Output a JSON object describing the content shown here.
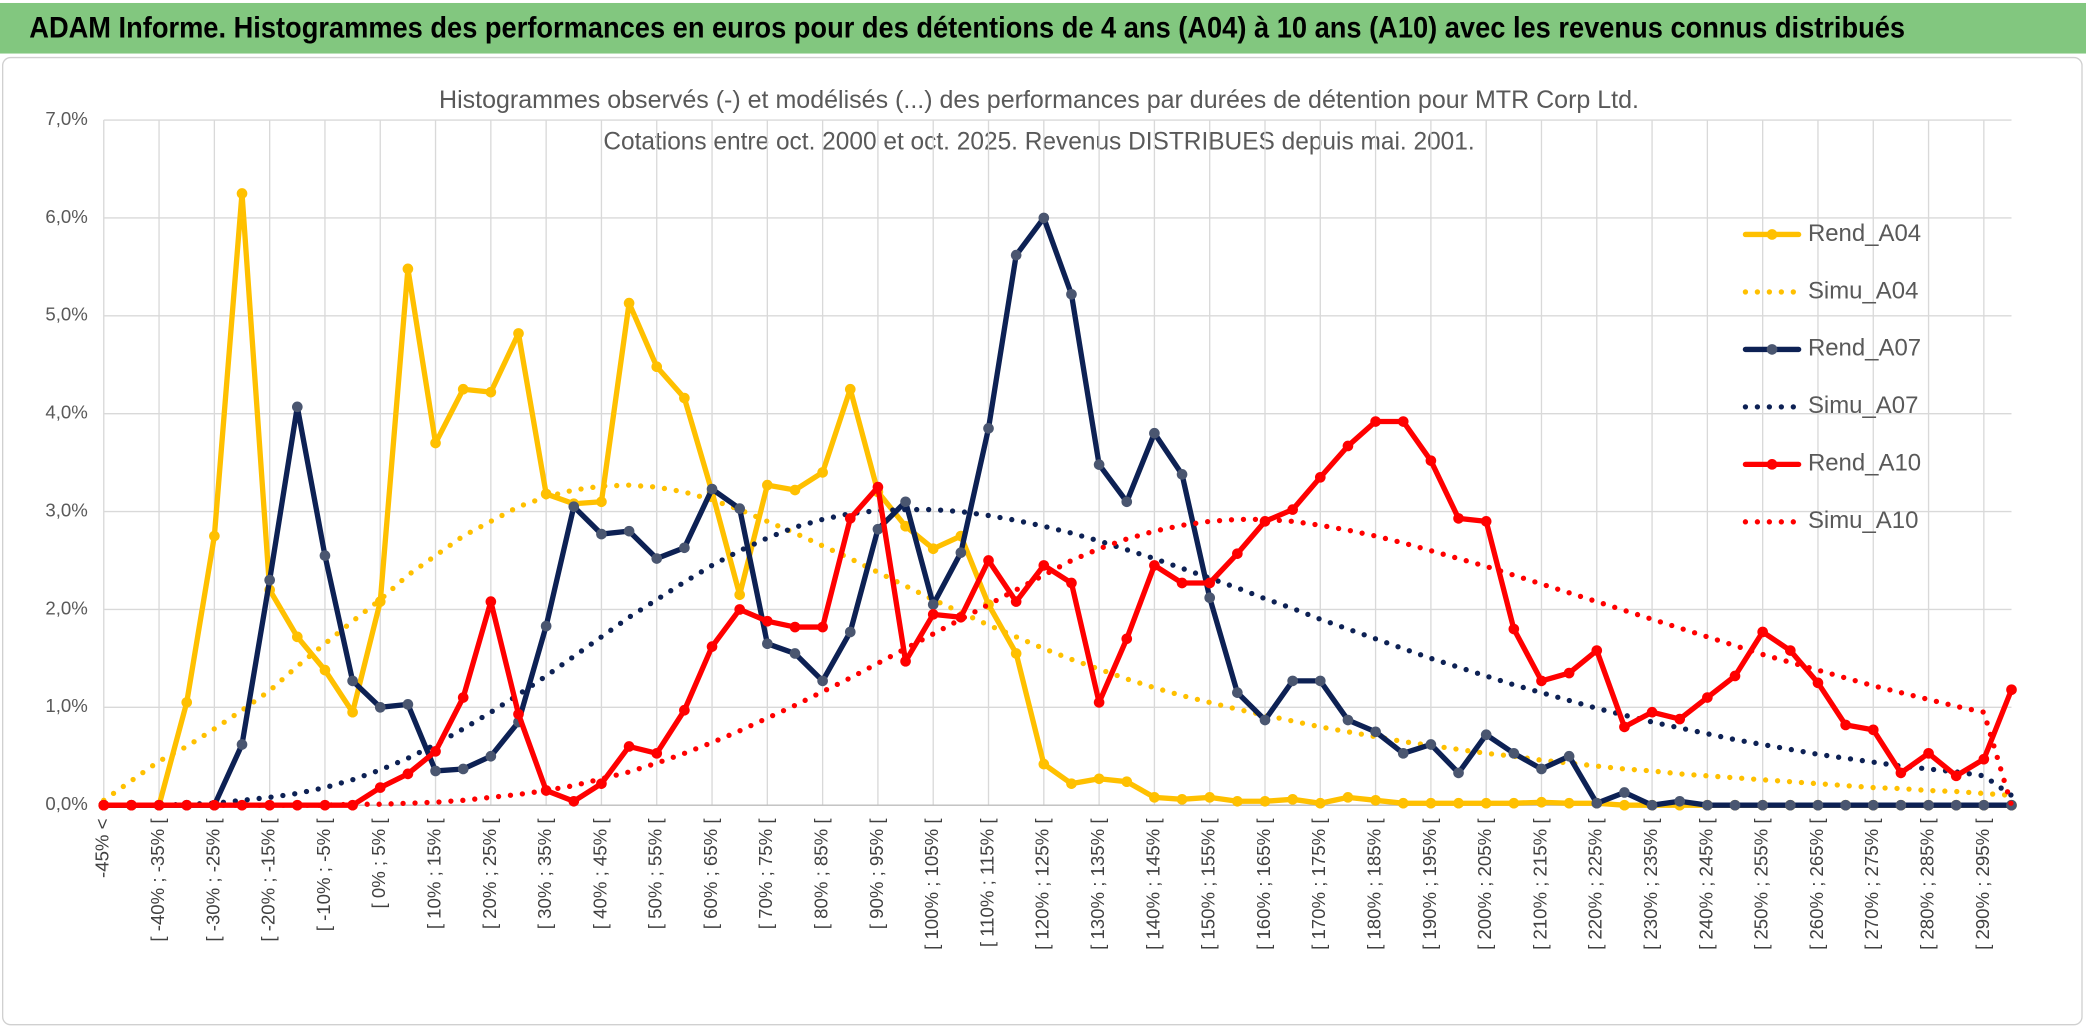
{
  "header": {
    "title": "ADAM Informe. Histogrammes des performances en euros pour des détentions de 4 ans (A04) à 10 ans (A10) avec les revenus connus distribués"
  },
  "chart_data": {
    "type": "line",
    "title": "Histogrammes observés (-) et modélisés (...) des performances par durées de détention pour MTR Corp Ltd.",
    "subtitle": "Cotations entre oct. 2000 et oct. 2025. Revenus DISTRIBUES depuis mai. 2001.",
    "categories": [
      "-45% <",
      null,
      "[ -40% ; -35% [",
      null,
      "[ -30% ; -25% [",
      null,
      "[ -20% ; -15% [",
      null,
      "[ -10% ; -5% [",
      null,
      "[ 0% ; 5% [",
      null,
      "[ 10% ; 15% [",
      null,
      "[ 20% ; 25% [",
      null,
      "[ 30% ; 35% [",
      null,
      "[ 40% ; 45% [",
      null,
      "[ 50% ; 55% [",
      null,
      "[ 60% ; 65% [",
      null,
      "[ 70% ; 75% [",
      null,
      "[ 80% ; 85% [",
      null,
      "[ 90% ; 95% [",
      null,
      "[ 100% ; 105% [",
      null,
      "[ 110% ; 115% [",
      null,
      "[ 120% ; 125% [",
      null,
      "[ 130% ; 135% [",
      null,
      "[ 140% ; 145% [",
      null,
      "[ 150% ; 155% [",
      null,
      "[ 160% ; 165% [",
      null,
      "[ 170% ; 175% [",
      null,
      "[ 180% ; 185% [",
      null,
      "[ 190% ; 195% [",
      null,
      "[ 200% ; 205% [",
      null,
      "[ 210% ; 215% [",
      null,
      "[ 220% ; 225% [",
      null,
      "[ 230% ; 235% [",
      null,
      "[ 240% ; 245% [",
      null,
      "[ 250% ; 255% [",
      null,
      "[ 260% ; 265% [",
      null,
      "[ 270% ; 275% [",
      null,
      "[ 280% ; 285% [",
      null,
      "[ 290% ; 295% [",
      null
    ],
    "series": [
      {
        "name": "Rend_A04",
        "color": "#ffc000",
        "dotted": false,
        "values": [
          0,
          0,
          0,
          1.05,
          2.75,
          6.25,
          2.2,
          1.72,
          1.38,
          0.95,
          2.08,
          5.48,
          3.7,
          4.25,
          4.22,
          4.82,
          3.18,
          3.08,
          3.1,
          5.13,
          4.48,
          4.16,
          3.2,
          2.15,
          3.27,
          3.22,
          3.4,
          4.25,
          3.2,
          2.85,
          2.62,
          2.75,
          2.05,
          1.55,
          0.42,
          0.22,
          0.27,
          0.24,
          0.08,
          0.06,
          0.08,
          0.04,
          0.04,
          0.06,
          0.02,
          0.08,
          0.05,
          0.02,
          0.02,
          0.02,
          0.02,
          0.02,
          0.03,
          0.02,
          0.02,
          0,
          0,
          0,
          0,
          0,
          0,
          0,
          0,
          0,
          0,
          0,
          0,
          0,
          0,
          0
        ]
      },
      {
        "name": "Simu_A04",
        "color": "#ffc000",
        "dotted": true,
        "values": [
          0.05,
          0.25,
          0.45,
          0.6,
          0.78,
          0.97,
          1.17,
          1.42,
          1.65,
          1.88,
          2.1,
          2.35,
          2.55,
          2.75,
          2.9,
          3.05,
          3.15,
          3.22,
          3.26,
          3.27,
          3.25,
          3.2,
          3.12,
          3.02,
          2.9,
          2.78,
          2.65,
          2.52,
          2.38,
          2.24,
          2.1,
          1.97,
          1.84,
          1.72,
          1.6,
          1.49,
          1.39,
          1.29,
          1.2,
          1.12,
          1.05,
          0.98,
          0.92,
          0.86,
          0.8,
          0.75,
          0.7,
          0.65,
          0.61,
          0.57,
          0.53,
          0.5,
          0.46,
          0.43,
          0.4,
          0.37,
          0.35,
          0.32,
          0.3,
          0.28,
          0.26,
          0.24,
          0.22,
          0.2,
          0.18,
          0.17,
          0.15,
          0.14,
          0.12,
          0.1
        ]
      },
      {
        "name": "Rend_A07",
        "color": "#0d2154",
        "dotted": false,
        "values": [
          0,
          0,
          0,
          0,
          0,
          0.62,
          2.3,
          4.07,
          2.55,
          1.27,
          1.0,
          1.03,
          0.35,
          0.37,
          0.5,
          0.85,
          1.83,
          3.05,
          2.77,
          2.8,
          2.52,
          2.63,
          3.23,
          3.03,
          1.65,
          1.55,
          1.27,
          1.77,
          2.82,
          3.1,
          2.05,
          2.58,
          3.85,
          5.62,
          6.0,
          5.22,
          3.48,
          3.1,
          3.8,
          3.38,
          2.12,
          1.15,
          0.87,
          1.27,
          1.27,
          0.87,
          0.75,
          0.53,
          0.62,
          0.33,
          0.72,
          0.53,
          0.37,
          0.5,
          0.02,
          0.13,
          0,
          0.04,
          0,
          0,
          0,
          0,
          0,
          0,
          0,
          0,
          0,
          0,
          0,
          0
        ]
      },
      {
        "name": "Simu_A07",
        "color": "#0d2154",
        "dotted": true,
        "values": [
          0,
          0,
          0,
          0.01,
          0.02,
          0.05,
          0.08,
          0.12,
          0.18,
          0.26,
          0.36,
          0.48,
          0.62,
          0.78,
          0.95,
          1.13,
          1.32,
          1.52,
          1.72,
          1.92,
          2.1,
          2.28,
          2.45,
          2.6,
          2.73,
          2.84,
          2.92,
          2.98,
          3.01,
          3.02,
          3.02,
          3.0,
          2.96,
          2.91,
          2.85,
          2.78,
          2.7,
          2.61,
          2.52,
          2.42,
          2.32,
          2.22,
          2.11,
          2.01,
          1.9,
          1.8,
          1.7,
          1.6,
          1.5,
          1.41,
          1.32,
          1.23,
          1.15,
          1.07,
          0.99,
          0.92,
          0.85,
          0.79,
          0.73,
          0.67,
          0.62,
          0.57,
          0.52,
          0.48,
          0.44,
          0.4,
          0.37,
          0.34,
          0.3,
          0.1
        ]
      },
      {
        "name": "Rend_A10",
        "color": "#ff0000",
        "dotted": false,
        "values": [
          0,
          0,
          0,
          0,
          0,
          0,
          0,
          0,
          0,
          0,
          0.18,
          0.32,
          0.55,
          1.1,
          2.08,
          0.93,
          0.15,
          0.04,
          0.22,
          0.6,
          0.53,
          0.97,
          1.62,
          2.0,
          1.88,
          1.82,
          1.82,
          2.93,
          3.25,
          1.47,
          1.95,
          1.92,
          2.5,
          2.08,
          2.45,
          2.27,
          1.05,
          1.7,
          2.45,
          2.27,
          2.27,
          2.57,
          2.9,
          3.02,
          3.35,
          3.67,
          3.92,
          3.92,
          3.52,
          2.93,
          2.9,
          1.8,
          1.27,
          1.35,
          1.58,
          0.8,
          0.95,
          0.88,
          1.1,
          1.32,
          1.77,
          1.58,
          1.25,
          0.82,
          0.77,
          0.33,
          0.53,
          0.3,
          0.47,
          1.18
        ]
      },
      {
        "name": "Simu_A10",
        "color": "#ff0000",
        "dotted": true,
        "values": [
          0,
          0,
          0,
          0,
          0,
          0,
          0,
          0,
          0,
          0.01,
          0.01,
          0.02,
          0.03,
          0.05,
          0.08,
          0.11,
          0.15,
          0.2,
          0.27,
          0.34,
          0.43,
          0.53,
          0.64,
          0.76,
          0.89,
          1.02,
          1.16,
          1.3,
          1.45,
          1.6,
          1.75,
          1.9,
          2.05,
          2.2,
          2.35,
          2.5,
          2.62,
          2.72,
          2.8,
          2.86,
          2.9,
          2.92,
          2.92,
          2.9,
          2.86,
          2.81,
          2.75,
          2.68,
          2.6,
          2.52,
          2.44,
          2.35,
          2.26,
          2.17,
          2.08,
          1.99,
          1.9,
          1.81,
          1.72,
          1.63,
          1.54,
          1.46,
          1.38,
          1.3,
          1.22,
          1.15,
          1.08,
          1.01,
          0.95,
          0
        ]
      }
    ],
    "ylim": [
      0,
      7
    ],
    "yticks": [
      {
        "value": 0,
        "label": "0,0%"
      },
      {
        "value": 1,
        "label": "1,0%"
      },
      {
        "value": 2,
        "label": "2,0%"
      },
      {
        "value": 3,
        "label": "3,0%"
      },
      {
        "value": 4,
        "label": "4,0%"
      },
      {
        "value": 5,
        "label": "5,0%"
      },
      {
        "value": 6,
        "label": "6,0%"
      },
      {
        "value": 7,
        "label": "7,0%"
      }
    ],
    "grid": true,
    "legend": "right"
  }
}
